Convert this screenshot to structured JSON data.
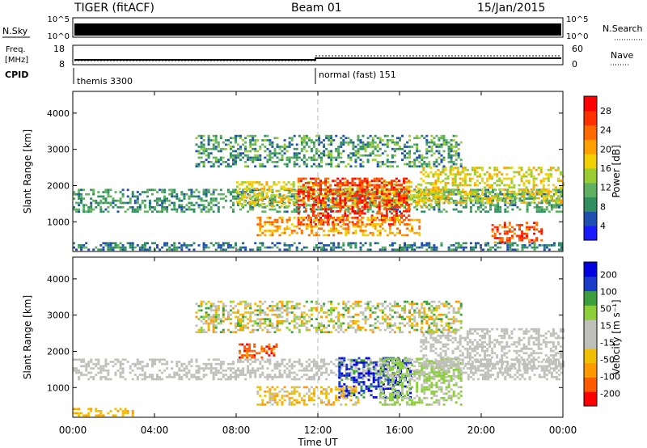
{
  "header": {
    "station": "TIGER (fitACF)",
    "beam": "Beam 01",
    "date": "15/Jan/2015"
  },
  "top_panels": {
    "nsky": {
      "label": "N.Sky",
      "ticks": [
        "10^5",
        "10^0"
      ]
    },
    "nsearch": {
      "label": "N.Search",
      "ticks": [
        "10^5",
        "10^0"
      ]
    },
    "freq": {
      "label_line1": "Freq.",
      "label_line2": "[MHz]",
      "ticks": [
        "18",
        "8"
      ]
    },
    "nave": {
      "label": "Nave",
      "ticks": [
        "60",
        "0"
      ]
    },
    "cpid": {
      "label": "CPID",
      "mode1": "themis 3300",
      "mode2": "normal (fast) 151"
    }
  },
  "colors": {
    "power": [
      "#1a1aff",
      "#1f4fb0",
      "#2f8f5f",
      "#5fb060",
      "#9acd32",
      "#f0d000",
      "#ffa000",
      "#ff6a00",
      "#ff3000",
      "#ff0000"
    ],
    "velocity": [
      "#ff0000",
      "#ff5a00",
      "#ff9900",
      "#f0c000",
      "#c0c0bb",
      "#c0c0bb",
      "#8ccf3a",
      "#3c9e3c",
      "#1a3cc8",
      "#0000e0"
    ]
  },
  "chart_data": [
    {
      "type": "heatmap",
      "name": "power-panel",
      "ylabel": "Slant Range [km]",
      "ylim": [
        180,
        4600
      ],
      "yticks": [
        1000,
        2000,
        3000,
        4000
      ],
      "xlim": [
        0,
        24
      ],
      "xticks": [
        "00:00",
        "04:00",
        "08:00",
        "12:00",
        "16:00",
        "20:00",
        "00:00"
      ],
      "colorbar": {
        "label": "Power [dB]",
        "ticks": [
          "28",
          "24",
          "20",
          "16",
          "12",
          "8",
          "4"
        ],
        "range": [
          0,
          30
        ]
      },
      "regions": [
        {
          "t0": 0,
          "t1": 24,
          "r0": 1250,
          "r1": 1900,
          "v0": 5,
          "v1": 12
        },
        {
          "t0": 8,
          "t1": 18,
          "r0": 1400,
          "r1": 2100,
          "v0": 13,
          "v1": 20
        },
        {
          "t0": 11,
          "t1": 16.5,
          "r0": 900,
          "r1": 2200,
          "v0": 22,
          "v1": 30
        },
        {
          "t0": 9,
          "t1": 17,
          "r0": 600,
          "r1": 1100,
          "v0": 15,
          "v1": 24
        },
        {
          "t0": 17,
          "t1": 24,
          "r0": 1500,
          "r1": 2500,
          "v0": 12,
          "v1": 20
        },
        {
          "t0": 20.5,
          "t1": 23,
          "r0": 400,
          "r1": 1000,
          "v0": 20,
          "v1": 28
        },
        {
          "t0": 0,
          "t1": 24,
          "r0": 200,
          "r1": 400,
          "v0": 3,
          "v1": 10
        },
        {
          "t0": 6,
          "t1": 19,
          "r0": 2500,
          "r1": 3400,
          "v0": 4,
          "v1": 14
        }
      ]
    },
    {
      "type": "heatmap",
      "name": "velocity-panel",
      "ylabel": "Slant Range [km]",
      "xlabel": "Time UT",
      "ylim": [
        180,
        4600
      ],
      "yticks": [
        1000,
        2000,
        3000,
        4000
      ],
      "xlim": [
        0,
        24
      ],
      "xticks": [
        "00:00",
        "04:00",
        "08:00",
        "12:00",
        "16:00",
        "20:00",
        "00:00"
      ],
      "colorbar": {
        "label": "Velocity [m s⁻¹]",
        "ticks": [
          "200",
          "100",
          "50",
          "15",
          "-15",
          "-50",
          "-100",
          "-200"
        ],
        "range": [
          -250,
          250
        ]
      },
      "regions": [
        {
          "t0": 0,
          "t1": 24,
          "r0": 1200,
          "r1": 1800,
          "v0": -14,
          "v1": 14
        },
        {
          "t0": 13,
          "t1": 16.5,
          "r0": 700,
          "r1": 1800,
          "v0": 120,
          "v1": 240
        },
        {
          "t0": 8,
          "t1": 10,
          "r0": 1800,
          "r1": 2200,
          "v0": -240,
          "v1": -120
        },
        {
          "t0": 9,
          "t1": 14,
          "r0": 500,
          "r1": 1000,
          "v0": -120,
          "v1": -30
        },
        {
          "t0": 15,
          "t1": 19,
          "r0": 500,
          "r1": 1800,
          "v0": 30,
          "v1": 90
        },
        {
          "t0": 0,
          "t1": 3,
          "r0": 200,
          "r1": 400,
          "v0": -110,
          "v1": -50
        },
        {
          "t0": 17,
          "t1": 24,
          "r0": 1500,
          "r1": 2600,
          "v0": -14,
          "v1": 14
        },
        {
          "t0": 6,
          "t1": 19,
          "r0": 2500,
          "r1": 3400,
          "v0": -150,
          "v1": 150
        }
      ]
    }
  ]
}
